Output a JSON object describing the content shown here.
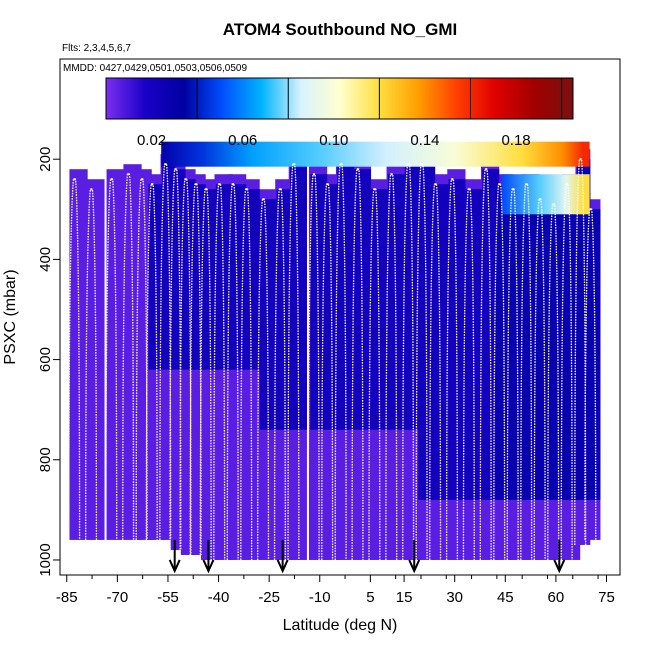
{
  "chart_data": {
    "type": "heatmap",
    "title": "ATOM4 Southbound NO_GMI",
    "flights_note": "Flts: 2,3,4,5,6,7",
    "dates_note": "MMDD: 0427,0429,0501,0503,0506,0509",
    "xlabel": "Latitude (deg N)",
    "ylabel": "PSXC (mbar)",
    "xlim": [
      -87,
      79
    ],
    "ylim": [
      1030,
      0
    ],
    "x_ticks": [
      -85,
      -70,
      -55,
      -40,
      -25,
      -10,
      5,
      15,
      30,
      45,
      60,
      75
    ],
    "x_tick_labels": [
      "-85",
      "-70",
      "-55",
      "-40",
      "-25",
      "-10",
      "5",
      "15",
      "30",
      "45",
      "60",
      "75"
    ],
    "y_ticks": [
      200,
      400,
      600,
      800,
      1000
    ],
    "y_tick_labels": [
      "200",
      "400",
      "600",
      "800",
      "1000"
    ],
    "colorbar": {
      "range": [
        0.0,
        0.205
      ],
      "ticks": [
        0.02,
        0.06,
        0.1,
        0.14,
        0.18
      ],
      "tick_labels": [
        "0.02",
        "0.06",
        "0.10",
        "0.14",
        "0.18"
      ],
      "divisions": [
        0.04,
        0.08,
        0.12,
        0.16,
        0.2
      ],
      "colors": [
        "#7b2ff0",
        "#1a00c8",
        "#0000a0",
        "#0050ff",
        "#00b4ff",
        "#d8f2ff",
        "#ffffd0",
        "#ffe040",
        "#ffa000",
        "#ff4000",
        "#e00000",
        "#a00000",
        "#7a1010"
      ]
    },
    "upper_band": {
      "lat_range": [
        -57,
        70
      ],
      "pressure_range": [
        165,
        215
      ],
      "values_by_lat": [
        [
          -57,
          0.03
        ],
        [
          -45,
          0.045
        ],
        [
          -30,
          0.065
        ],
        [
          -10,
          0.075
        ],
        [
          10,
          0.085
        ],
        [
          30,
          0.1
        ],
        [
          50,
          0.12
        ],
        [
          62,
          0.14
        ],
        [
          68,
          0.16
        ]
      ]
    },
    "second_band": {
      "lat_range": [
        44,
        70
      ],
      "pressure_range": [
        230,
        310
      ],
      "values_by_lat": [
        [
          44,
          0.05
        ],
        [
          55,
          0.075
        ],
        [
          63,
          0.09
        ],
        [
          68,
          0.12
        ]
      ]
    },
    "profiles": [
      [
        -83,
        240,
        960
      ],
      [
        -78,
        260,
        960
      ],
      [
        -72,
        240,
        960
      ],
      [
        -67,
        230,
        960
      ],
      [
        -63,
        240,
        960
      ],
      [
        -60,
        250,
        960
      ],
      [
        -56,
        210,
        960
      ],
      [
        -53,
        220,
        980
      ],
      [
        -50,
        240,
        990
      ],
      [
        -47,
        250,
        990
      ],
      [
        -44,
        260,
        1000
      ],
      [
        -40,
        250,
        1000
      ],
      [
        -36,
        250,
        1000
      ],
      [
        -32,
        260,
        1000
      ],
      [
        -27,
        280,
        1000
      ],
      [
        -22,
        260,
        1000
      ],
      [
        -18,
        210,
        1000
      ],
      [
        -12,
        230,
        1000
      ],
      [
        -8,
        250,
        1000
      ],
      [
        -4,
        210,
        1000
      ],
      [
        1,
        220,
        1000
      ],
      [
        6,
        260,
        1000
      ],
      [
        11,
        230,
        1000
      ],
      [
        16,
        210,
        1000
      ],
      [
        20,
        210,
        1000
      ],
      [
        24,
        250,
        1000
      ],
      [
        29,
        240,
        1000
      ],
      [
        34,
        260,
        1000
      ],
      [
        39,
        220,
        1000
      ],
      [
        43,
        250,
        1000
      ],
      [
        47,
        260,
        1000
      ],
      [
        51,
        250,
        1000
      ],
      [
        55,
        280,
        1000
      ],
      [
        59,
        290,
        1000
      ],
      [
        63,
        250,
        1000
      ],
      [
        67,
        200,
        970
      ],
      [
        70,
        300,
        960
      ]
    ],
    "arrow_latitudes": [
      -53,
      -43,
      -21,
      18,
      61
    ],
    "series_note": "White curves: aircraft vertical profiles (ascents/descents) from upper troposphere to boundary layer; fill: NO_GMI model field sampled along track"
  }
}
